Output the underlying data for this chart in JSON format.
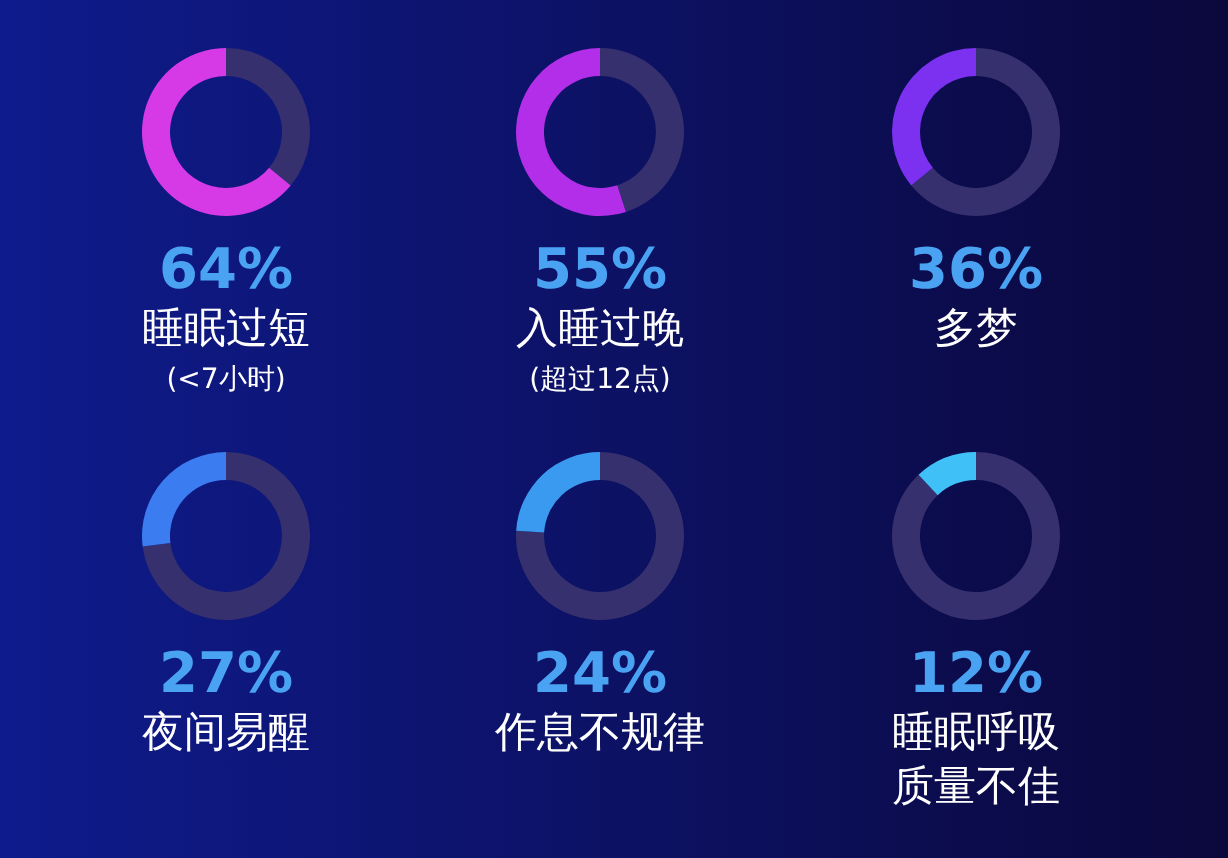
{
  "chart_data": [
    {
      "type": "donut",
      "title": "64%",
      "subtitle": "睡眠过短",
      "categories": [
        null,
        null
      ],
      "values": [
        64,
        36
      ],
      "colors": [
        "#d63ae6",
        "#37306e"
      ],
      "annotations": [
        "(<7小时)"
      ]
    },
    {
      "type": "donut",
      "title": "55%",
      "subtitle": "入睡过晚",
      "categories": [
        null,
        null
      ],
      "values": [
        55,
        45
      ],
      "colors": [
        "#b22ee8",
        "#37306e"
      ],
      "annotations": [
        "(超过12点)"
      ]
    },
    {
      "type": "donut",
      "title": "36%",
      "subtitle": "多梦",
      "categories": [
        null,
        null
      ],
      "values": [
        36,
        64
      ],
      "colors": [
        "#7c30f0",
        "#37306e"
      ]
    },
    {
      "type": "donut",
      "title": "27%",
      "subtitle": "夜间易醒",
      "categories": [
        null,
        null
      ],
      "values": [
        27,
        73
      ],
      "colors": [
        "#3b7cf0",
        "#37306e"
      ]
    },
    {
      "type": "donut",
      "title": "24%",
      "subtitle": "作息不规律",
      "categories": [
        null,
        null
      ],
      "values": [
        24,
        76
      ],
      "colors": [
        "#3a9af0",
        "#37306e"
      ]
    },
    {
      "type": "donut",
      "title": "12%",
      "subtitle": "睡眠呼吸质量不佳",
      "categories": [
        null,
        null
      ],
      "values": [
        12,
        88
      ],
      "colors": [
        "#3fc0f6",
        "#37306e"
      ]
    }
  ]
}
